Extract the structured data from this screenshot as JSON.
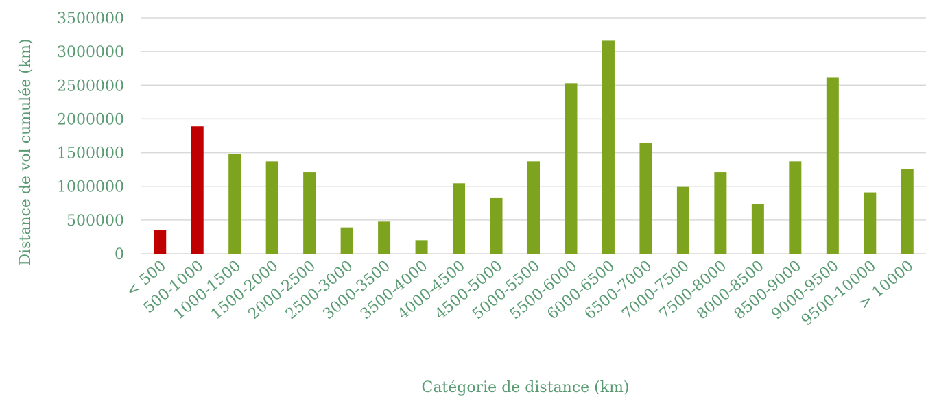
{
  "chart_data": {
    "type": "bar",
    "title": "",
    "xlabel": "Catégorie de distance (km)",
    "ylabel": "Distance de vol cumulée (km)",
    "ylim": [
      0,
      3500000
    ],
    "yticks": [
      0,
      500000,
      1000000,
      1500000,
      2000000,
      2500000,
      3000000,
      3500000
    ],
    "ytick_labels": [
      "0",
      "500000",
      "1000000",
      "1500000",
      "2000000",
      "2500000",
      "3000000",
      "3500000"
    ],
    "grid": true,
    "categories": [
      "< 500",
      "500-1000",
      "1000-1500",
      "1500-2000",
      "2000-2500",
      "2500-3000",
      "3000-3500",
      "3500-4000",
      "4000-4500",
      "4500-5000",
      "5000-5500",
      "5500-6000",
      "6000-6500",
      "6500-7000",
      "7000-7500",
      "7500-8000",
      "8000-8500",
      "8500-9000",
      "9000-9500",
      "9500-10000",
      "> 10000"
    ],
    "values": [
      350000,
      1890000,
      1480000,
      1370000,
      1210000,
      390000,
      475000,
      200000,
      1045000,
      825000,
      1370000,
      2530000,
      3160000,
      1640000,
      990000,
      1210000,
      740000,
      1370000,
      2610000,
      910000,
      1260000
    ],
    "bar_colors": [
      "#c00000",
      "#c00000",
      "#7ea41f",
      "#7ea41f",
      "#7ea41f",
      "#7ea41f",
      "#7ea41f",
      "#7ea41f",
      "#7ea41f",
      "#7ea41f",
      "#7ea41f",
      "#7ea41f",
      "#7ea41f",
      "#7ea41f",
      "#7ea41f",
      "#7ea41f",
      "#7ea41f",
      "#7ea41f",
      "#7ea41f",
      "#7ea41f",
      "#7ea41f"
    ],
    "text_color": "#5a9a73"
  }
}
